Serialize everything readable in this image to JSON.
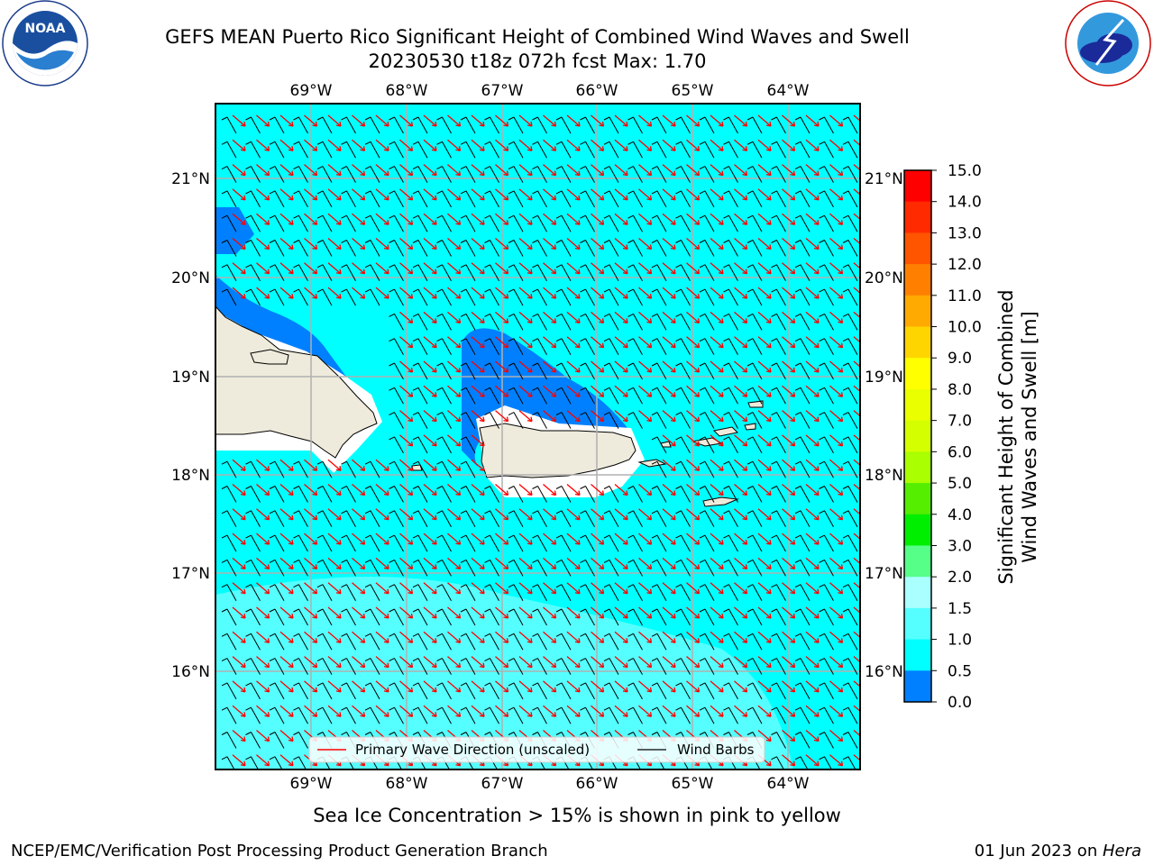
{
  "title": {
    "line1": "GEFS MEAN Puerto Rico Significant Height of Combined Wind Waves and Swell",
    "line2": "20230530 t18z 072h fcst   Max: 1.70"
  },
  "logos": {
    "left": {
      "text": "NOAA",
      "ring_text": "NATIONAL OCEANIC AND ATMOSPHERIC ADMINISTRATION · U.S. DEPARTMENT OF COMMERCE",
      "icon": "noaa-logo"
    },
    "right": {
      "ring_text": "NATIONAL WEATHER SERVICE",
      "icon": "nws-logo"
    }
  },
  "map": {
    "lon_ticks": [
      "69°W",
      "68°W",
      "67°W",
      "66°W",
      "65°W",
      "64°W"
    ],
    "lat_ticks": [
      "21°N",
      "20°N",
      "19°N",
      "18°N",
      "17°N",
      "16°N"
    ],
    "colors": {
      "ocean_1_1p5": "#00ffff",
      "ocean_0p5_1": "#0080ff",
      "ocean_1p5_2": "#55ffff",
      "land": "#eeebdc",
      "grid": "#b0b0b0",
      "wave_arrow": "#ff0000",
      "wind_barb": "#000000"
    }
  },
  "legend": {
    "wave_label": "Primary Wave Direction (unscaled)",
    "wind_label": "Wind Barbs"
  },
  "colorbar": {
    "label_line1": "Significant Height of Combined",
    "label_line2": "Wind Waves and Swell [m]",
    "ticks": [
      "15.0",
      "14.0",
      "13.0",
      "12.0",
      "11.0",
      "10.0",
      "9.0",
      "8.0",
      "7.0",
      "6.0",
      "5.0",
      "4.0",
      "3.0",
      "2.0",
      "1.5",
      "1.0",
      "0.5",
      "0.0"
    ],
    "colors": [
      "#ff0000",
      "#ff2a00",
      "#ff5500",
      "#ff8000",
      "#ffaa00",
      "#ffd500",
      "#ffff00",
      "#eaff00",
      "#d4ff00",
      "#aaff00",
      "#55ee00",
      "#00ee00",
      "#55ff88",
      "#aaffff",
      "#55ffff",
      "#00ffff",
      "#0080ff",
      "#0000ff"
    ]
  },
  "caption": "Sea Ice Concentration > 15% is shown in pink to yellow",
  "footer": {
    "left": "NCEP/EMC/Verification Post Processing Product Generation Branch",
    "right_date": "01 Jun 2023 on ",
    "right_host": "Hera"
  }
}
